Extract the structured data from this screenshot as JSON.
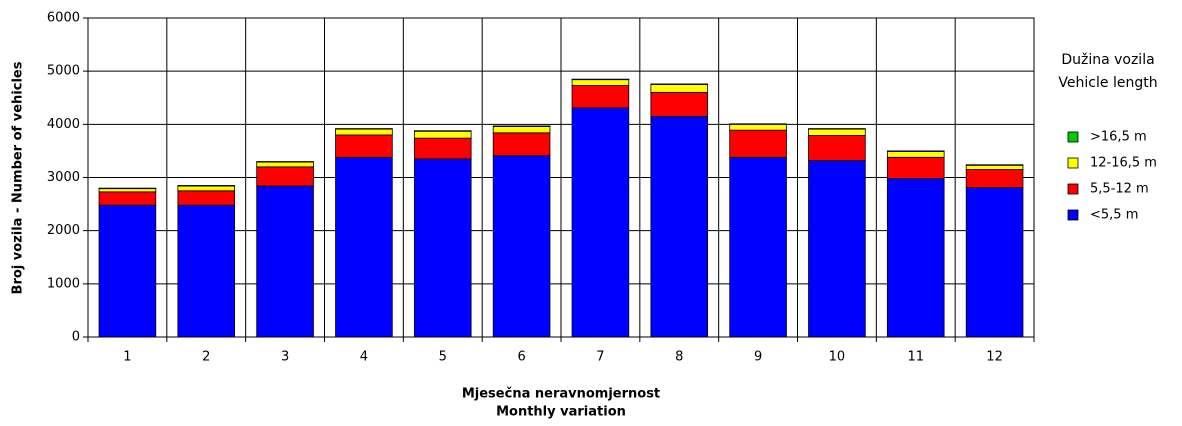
{
  "chart_data": {
    "type": "stacked_bar",
    "x_label_lines": [
      "Mjesečna neravnomjernost",
      "Monthly variation"
    ],
    "y_label": "Broj vozila - Number of vehicles",
    "legend_title_lines": [
      "Dužina vozila",
      "Vehicle length"
    ],
    "legend_position": "right",
    "categories": [
      "1",
      "2",
      "3",
      "4",
      "5",
      "6",
      "7",
      "8",
      "9",
      "10",
      "11",
      "12"
    ],
    "series": [
      {
        "name": "<5,5 m",
        "color": "#0000ff",
        "values": [
          2480,
          2480,
          2840,
          3380,
          3350,
          3410,
          4310,
          4150,
          3380,
          3320,
          2980,
          2810
        ]
      },
      {
        "name": "5,5-12 m",
        "color": "#ff0000",
        "values": [
          250,
          270,
          360,
          420,
          390,
          430,
          420,
          450,
          510,
          470,
          400,
          340
        ]
      },
      {
        "name": "12-16,5 m",
        "color": "#ffff00",
        "values": [
          60,
          90,
          90,
          110,
          130,
          120,
          110,
          150,
          110,
          120,
          110,
          80
        ]
      },
      {
        "name": ">16,5 m",
        "color": "#00cc00",
        "values": [
          10,
          10,
          10,
          10,
          10,
          10,
          10,
          10,
          10,
          10,
          10,
          10
        ]
      }
    ],
    "ylim": [
      0,
      6000
    ],
    "yticks": [
      0,
      1000,
      2000,
      3000,
      4000,
      5000,
      6000
    ],
    "grid": true
  }
}
